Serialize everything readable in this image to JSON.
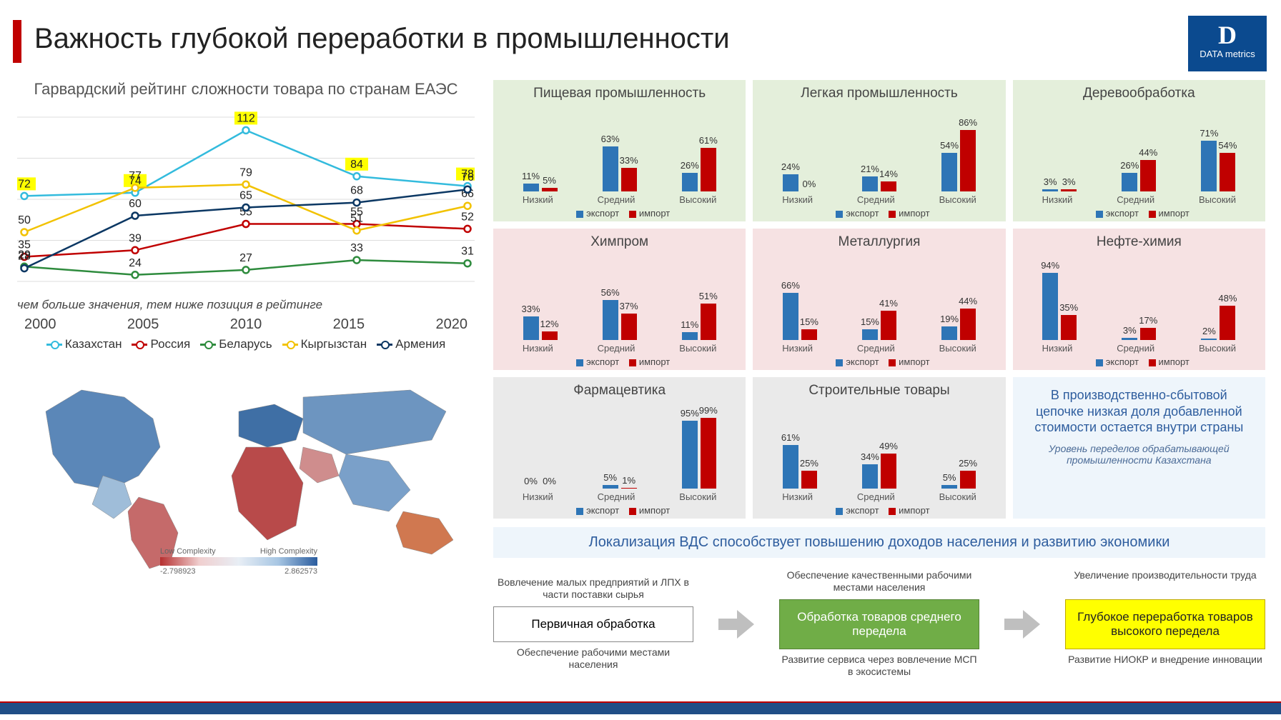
{
  "title": "Важность глубокой переработки в промышленности",
  "logo": {
    "letter": "D",
    "text": "DATA metrics",
    "bg": "#0b4a8f"
  },
  "line_chart": {
    "title": "Гарвардский рейтинг сложности товара по странам ЕАЭС",
    "note": "чем больше значения, тем ниже позиция в рейтинге",
    "years": [
      "2000",
      "2005",
      "2010",
      "2015",
      "2020"
    ],
    "ylim": [
      20,
      120
    ],
    "series": [
      {
        "name": "Казахстан",
        "color": "#33bbdd",
        "values": [
          72,
          74,
          112,
          84,
          78
        ],
        "highlight": true
      },
      {
        "name": "Россия",
        "color": "#c00000",
        "values": [
          35,
          39,
          55,
          55,
          52
        ]
      },
      {
        "name": "Беларусь",
        "color": "#2e8b3d",
        "values": [
          29,
          24,
          27,
          33,
          31
        ]
      },
      {
        "name": "Кыргызстан",
        "color": "#f2c200",
        "values": [
          50,
          77,
          79,
          51,
          66
        ]
      },
      {
        "name": "Армения",
        "color": "#0b3763",
        "values": [
          28,
          60,
          65,
          68,
          76
        ]
      }
    ]
  },
  "map_legend": {
    "low": "Low Complexity",
    "high": "High Complexity",
    "min": "-2.798923",
    "max": "2.862573"
  },
  "mini_categories": [
    "Низкий",
    "Средний",
    "Высокий"
  ],
  "mini_legend": {
    "exp": "экспорт",
    "imp": "импорт",
    "exp_color": "#2e75b6",
    "imp_color": "#c00000"
  },
  "panels": [
    {
      "title": "Пищевая промышленность",
      "bg": "green",
      "rows": [
        [
          11,
          5
        ],
        [
          63,
          33
        ],
        [
          26,
          61
        ]
      ]
    },
    {
      "title": "Легкая промышленность",
      "bg": "green",
      "rows": [
        [
          24,
          0
        ],
        [
          21,
          14
        ],
        [
          54,
          86
        ]
      ]
    },
    {
      "title": "Деревообработка",
      "bg": "green",
      "rows": [
        [
          3,
          3
        ],
        [
          26,
          44
        ],
        [
          71,
          54
        ]
      ]
    },
    {
      "title": "Химпром",
      "bg": "pink",
      "rows": [
        [
          33,
          12
        ],
        [
          56,
          37
        ],
        [
          11,
          51
        ]
      ]
    },
    {
      "title": "Металлургия",
      "bg": "pink",
      "rows": [
        [
          66,
          15
        ],
        [
          15,
          41
        ],
        [
          19,
          44
        ]
      ]
    },
    {
      "title": "Нефте-химия",
      "bg": "pink",
      "rows": [
        [
          94,
          35
        ],
        [
          3,
          17
        ],
        [
          2,
          48
        ]
      ]
    },
    {
      "title": "Фармацевтика",
      "bg": "gray",
      "rows": [
        [
          0,
          0
        ],
        [
          5,
          1
        ],
        [
          95,
          99
        ]
      ]
    },
    {
      "title": "Строительные товары",
      "bg": "gray",
      "rows": [
        [
          61,
          25
        ],
        [
          34,
          49
        ],
        [
          5,
          25
        ]
      ]
    }
  ],
  "textbox": {
    "big": "В производственно-сбытовой цепочке низкая доля добавленной стоимости остается внутри страны",
    "sub": "Уровень переделов обрабатывающей промышленности Казахстана"
  },
  "banner": "Локализация ВДС способствует повышению доходов населения и развитию экономики",
  "flow": [
    {
      "above": "Вовлечение малых предприятий и ЛПХ в части поставки сырья",
      "box": "Первичная обработка",
      "below": "Обеспечение рабочими местами населения",
      "cls": "white"
    },
    {
      "above": "Обеспечение качественными рабочими местами населения",
      "box": "Обработка товаров среднего передела",
      "below": "Развитие сервиса через вовлечение МСП в экосистемы",
      "cls": "green2"
    },
    {
      "above": "Увеличение производительности труда",
      "box": "Глубокое переработка товаров высокого передела",
      "below": "Развитие НИОКР и внедрение инновации",
      "cls": "yellow"
    }
  ]
}
